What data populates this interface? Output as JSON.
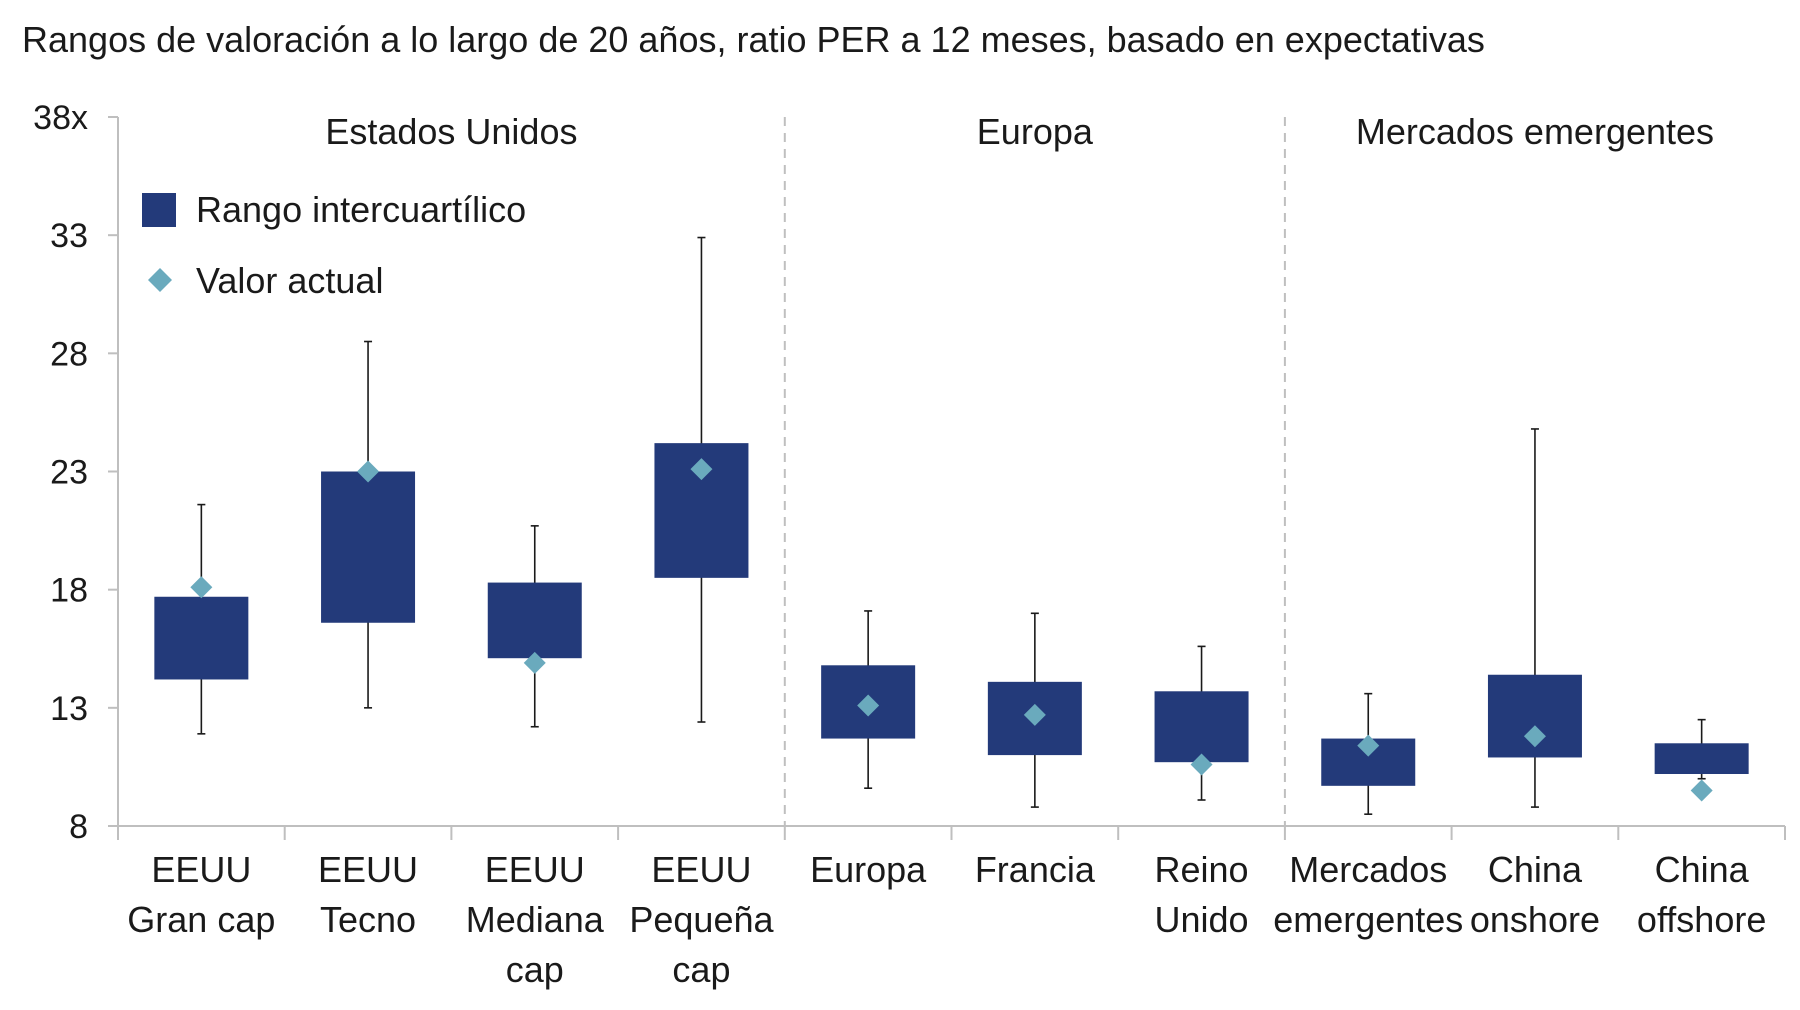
{
  "chart_data": {
    "type": "box",
    "title": "Rangos de valoración a lo largo de 20 años, ratio PER a 12 meses, basado en expectativas",
    "xlabel": "",
    "ylabel": "",
    "ylim": [
      8,
      38
    ],
    "yticks": [
      8,
      13,
      18,
      23,
      28,
      33,
      38
    ],
    "ytick_labels": [
      "8",
      "13",
      "18",
      "23",
      "28",
      "33",
      "38x"
    ],
    "grid": false,
    "legend_position": "top-left",
    "legend": [
      {
        "label": "Rango intercuartílico",
        "marker": "square",
        "color": "#233a7a"
      },
      {
        "label": "Valor actual",
        "marker": "diamond",
        "color": "#6aaabd"
      }
    ],
    "groups": [
      {
        "name": "Estados Unidos",
        "start": 0,
        "end": 3
      },
      {
        "name": "Europa",
        "start": 4,
        "end": 6
      },
      {
        "name": "Mercados emergentes",
        "start": 7,
        "end": 9
      }
    ],
    "categories": [
      [
        "EEUU",
        "Gran cap"
      ],
      [
        "EEUU",
        "Tecno"
      ],
      [
        "EEUU",
        "Mediana",
        "cap"
      ],
      [
        "EEUU",
        "Pequeña",
        "cap"
      ],
      [
        "Europa"
      ],
      [
        "Francia"
      ],
      [
        "Reino",
        "Unido"
      ],
      [
        "Mercados",
        "emergentes"
      ],
      [
        "China",
        "onshore"
      ],
      [
        "China",
        "offshore"
      ]
    ],
    "whisker_low": [
      11.9,
      13.0,
      12.2,
      12.4,
      9.6,
      8.8,
      9.1,
      8.5,
      8.8,
      10.0
    ],
    "q1": [
      14.2,
      16.6,
      15.1,
      18.5,
      11.7,
      11.0,
      10.7,
      9.7,
      10.9,
      10.2
    ],
    "q3": [
      17.7,
      23.0,
      18.3,
      24.2,
      14.8,
      14.1,
      13.7,
      11.7,
      14.4,
      11.5
    ],
    "whisker_high": [
      21.6,
      28.5,
      20.7,
      32.9,
      17.1,
      17.0,
      15.6,
      13.6,
      24.8,
      12.5
    ],
    "current": [
      18.1,
      23.0,
      14.9,
      23.1,
      13.1,
      12.7,
      10.6,
      11.4,
      11.8,
      9.5
    ],
    "colors": {
      "box": "#233a7a",
      "current": "#6aaabd",
      "whisker": "#1a1a1a",
      "axis": "#bfbfbf",
      "separator": "#bfbfbf"
    }
  }
}
